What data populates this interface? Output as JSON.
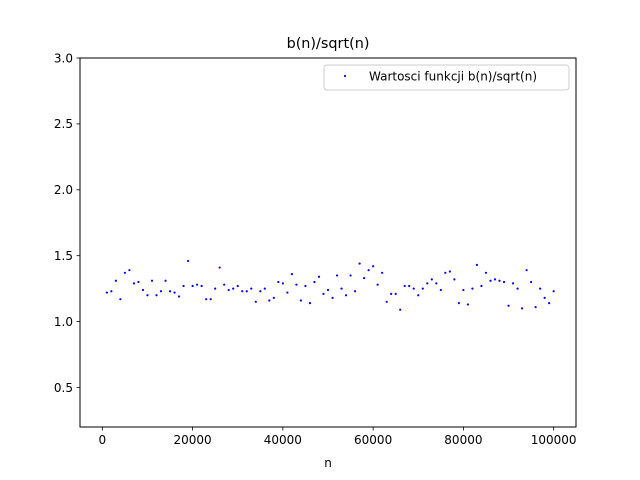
{
  "chart_data": {
    "type": "scatter",
    "title": "b(n)/sqrt(n)",
    "xlabel": "n",
    "ylabel": "",
    "xlim": [
      -4950,
      104950
    ],
    "ylim": [
      0.2,
      3.0
    ],
    "xticks": [
      0,
      20000,
      40000,
      60000,
      80000,
      100000
    ],
    "xtick_labels": [
      "0",
      "20000",
      "40000",
      "60000",
      "80000",
      "100000"
    ],
    "yticks": [
      0.5,
      1.0,
      1.5,
      2.0,
      2.5,
      3.0
    ],
    "ytick_labels": [
      "0.5",
      "1.0",
      "1.5",
      "2.0",
      "2.5",
      "3.0"
    ],
    "grid": false,
    "legend_position": "top-right",
    "series": [
      {
        "name": "Wartosci funkcji b(n)/sqrt(n)",
        "color": "#0000ff",
        "marker": "point",
        "x": [
          1000,
          2000,
          3000,
          4000,
          5000,
          6000,
          7000,
          8000,
          9000,
          10000,
          11000,
          12000,
          13000,
          14000,
          15000,
          16000,
          17000,
          18000,
          19000,
          20000,
          21000,
          22000,
          23000,
          24000,
          25000,
          26000,
          27000,
          28000,
          29000,
          30000,
          31000,
          32000,
          33000,
          34000,
          35000,
          36000,
          37000,
          38000,
          39000,
          40000,
          41000,
          42000,
          43000,
          44000,
          45000,
          46000,
          47000,
          48000,
          49000,
          50000,
          51000,
          52000,
          53000,
          54000,
          55000,
          56000,
          57000,
          58000,
          59000,
          60000,
          61000,
          62000,
          63000,
          64000,
          65000,
          66000,
          67000,
          68000,
          69000,
          70000,
          71000,
          72000,
          73000,
          74000,
          75000,
          76000,
          77000,
          78000,
          79000,
          80000,
          81000,
          82000,
          83000,
          84000,
          85000,
          86000,
          87000,
          88000,
          89000,
          90000,
          91000,
          92000,
          93000,
          94000,
          95000,
          96000,
          97000,
          98000,
          99000,
          100000
        ],
        "y": [
          1.22,
          1.23,
          1.31,
          1.17,
          1.37,
          1.39,
          1.29,
          1.3,
          1.24,
          1.2,
          1.31,
          1.2,
          1.23,
          1.31,
          1.23,
          1.22,
          1.19,
          1.27,
          1.46,
          1.27,
          1.28,
          1.27,
          1.17,
          1.17,
          1.25,
          1.41,
          1.28,
          1.24,
          1.25,
          1.27,
          1.23,
          1.23,
          1.25,
          1.15,
          1.23,
          1.25,
          1.16,
          1.18,
          1.3,
          1.29,
          1.22,
          1.36,
          1.28,
          1.16,
          1.27,
          1.14,
          1.3,
          1.34,
          1.21,
          1.24,
          1.18,
          1.35,
          1.25,
          1.2,
          1.35,
          1.23,
          1.44,
          1.33,
          1.39,
          1.42,
          1.28,
          1.37,
          1.15,
          1.21,
          1.21,
          1.09,
          1.27,
          1.27,
          1.25,
          1.2,
          1.25,
          1.29,
          1.32,
          1.29,
          1.24,
          1.37,
          1.38,
          1.32,
          1.14,
          1.24,
          1.13,
          1.25,
          1.43,
          1.27,
          1.37,
          1.31,
          1.32,
          1.31,
          1.3,
          1.12,
          1.29,
          1.25,
          1.1,
          1.39,
          1.3,
          1.11,
          1.25,
          1.18,
          1.14,
          1.23
        ]
      }
    ]
  }
}
